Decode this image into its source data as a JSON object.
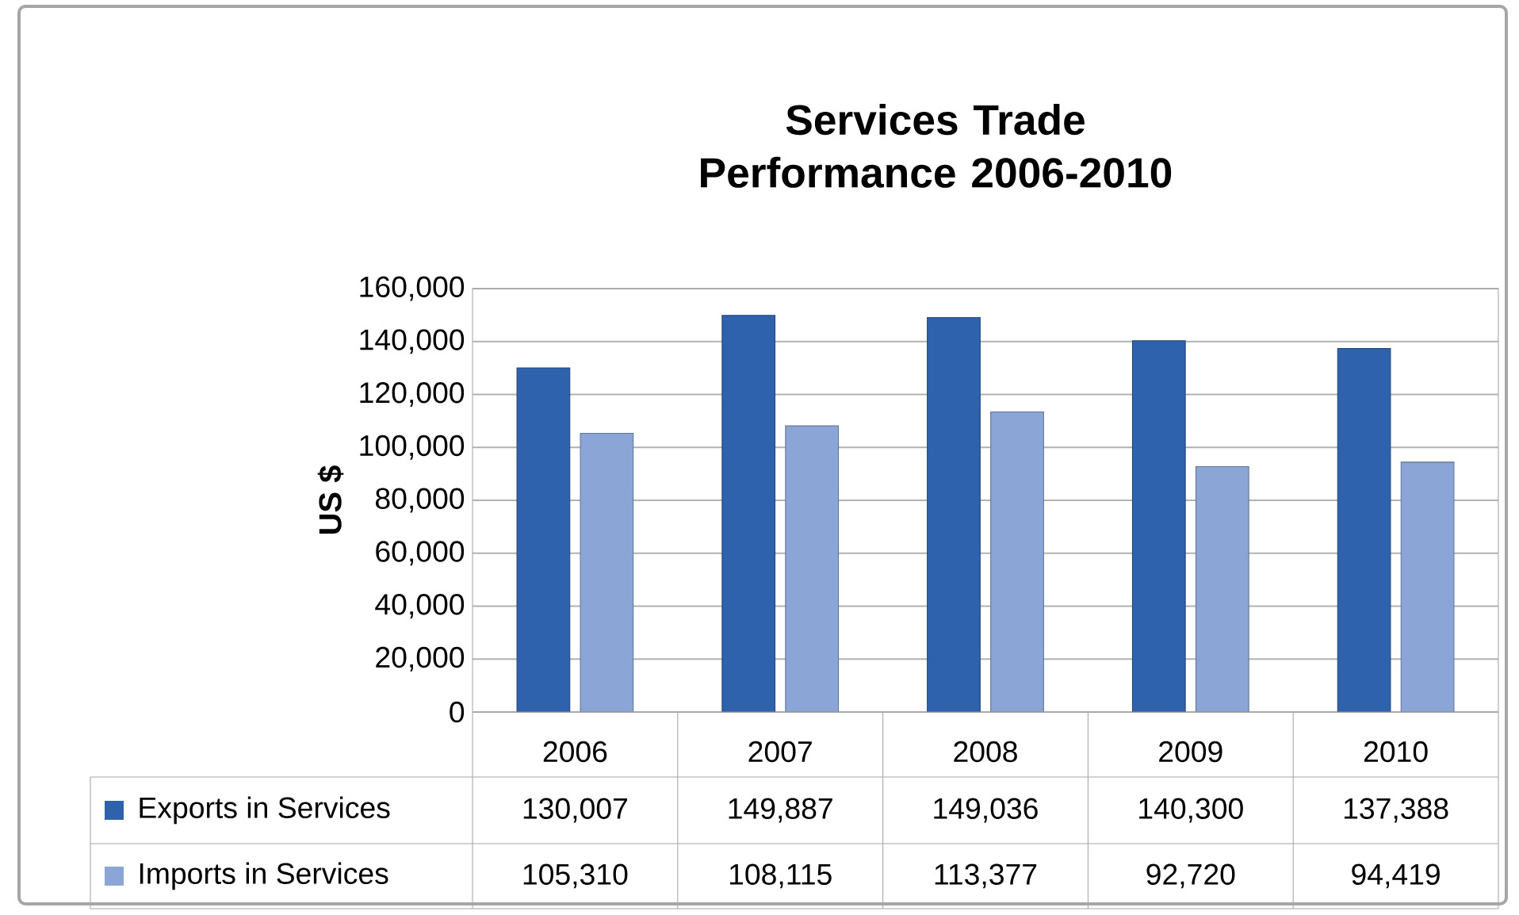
{
  "chart_data": {
    "type": "bar",
    "title": "Services Trade Performance 2006-2010",
    "ylabel": "US $",
    "categories": [
      "2006",
      "2007",
      "2008",
      "2009",
      "2010"
    ],
    "series": [
      {
        "name": "Exports in Services",
        "color": "#2f62ad",
        "values": [
          130007,
          149887,
          149036,
          140300,
          137388
        ],
        "value_labels": [
          "130,007",
          "149,887",
          "149,036",
          "140,300",
          "137,388"
        ]
      },
      {
        "name": "Imports in Services",
        "color": "#8ba5d6",
        "values": [
          105310,
          108115,
          113377,
          92720,
          94419
        ],
        "value_labels": [
          "105,310",
          "108,115",
          "113,377",
          "92,720",
          "94,419"
        ]
      }
    ],
    "ylim": [
      0,
      160000
    ],
    "yticks": [
      {
        "value": 0,
        "label": "0"
      },
      {
        "value": 20000,
        "label": "20,000"
      },
      {
        "value": 40000,
        "label": "40,000"
      },
      {
        "value": 60000,
        "label": "60,000"
      },
      {
        "value": 80000,
        "label": "80,000"
      },
      {
        "value": 100000,
        "label": "100,000"
      },
      {
        "value": 120000,
        "label": "120,000"
      },
      {
        "value": 140000,
        "label": "140,000"
      },
      {
        "value": 160000,
        "label": "160,000"
      }
    ],
    "grid": "y",
    "legend": "bottom"
  }
}
